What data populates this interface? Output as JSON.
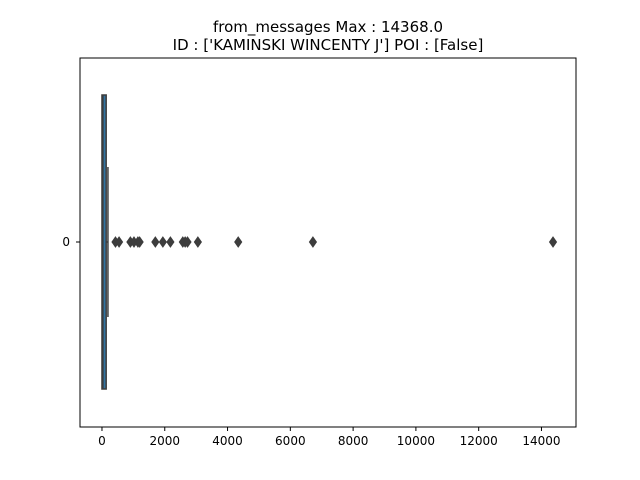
{
  "chart_data": {
    "type": "box",
    "orientation": "horizontal",
    "title_line1": "from_messages  Max : 14368.0",
    "title_line2": "ID : ['KAMINSKI WINCENTY J']  POI : [False]",
    "xlabel": "",
    "ylabel": "",
    "xlim": [
      -700,
      15100
    ],
    "x_ticks": [
      0,
      2000,
      4000,
      6000,
      8000,
      10000,
      12000,
      14000
    ],
    "y_tick_labels": [
      "0"
    ],
    "grid": false,
    "box_color": "#3274a1",
    "edge_color": "#3d3d3d",
    "box": {
      "min": 0,
      "q1": 0,
      "median": 29,
      "q3": 134,
      "whisker_high": 190
    },
    "outliers": [
      430,
      545,
      905,
      1020,
      1145,
      1200,
      1700,
      1940,
      2180,
      2575,
      2650,
      2725,
      3055,
      4340,
      6720,
      14368
    ]
  }
}
